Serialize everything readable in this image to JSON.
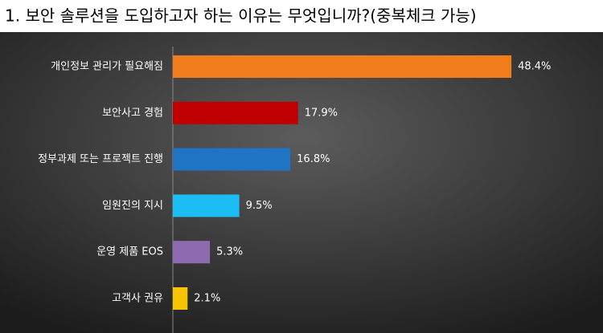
{
  "chart_data": {
    "type": "bar",
    "orientation": "horizontal",
    "title": "1. 보안 솔루션을 도입하고자 하는 이유는 무엇입니까?(중복체크 가능)",
    "categories": [
      "개인정보 관리가 필요해짐",
      "보안사고 경험",
      "정부과제 또는 프로젝트 진행",
      "임원진의 지시",
      "운영 제품 EOS",
      "고객사 권유"
    ],
    "values": [
      48.4,
      17.9,
      16.8,
      9.5,
      5.3,
      2.1
    ],
    "value_labels": [
      "48.4%",
      "17.9%",
      "16.8%",
      "9.5%",
      "5.3%",
      "2.1%"
    ],
    "colors": [
      "#f07c1b",
      "#c00000",
      "#1f74c4",
      "#1cbcf4",
      "#8e6bb0",
      "#f5c400"
    ]
  }
}
